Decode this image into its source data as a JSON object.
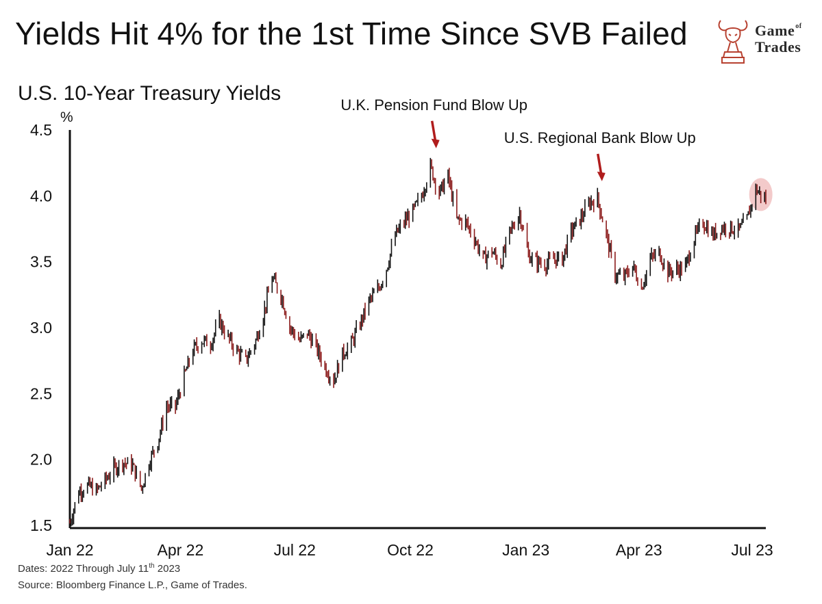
{
  "header": {
    "title": "Yields Hit 4% for the 1st Time Since SVB Failed",
    "logo_line1": "Game",
    "logo_of": "of",
    "logo_line2": "Trades"
  },
  "footer": {
    "dates_prefix": "Dates: 2022 Through July 11",
    "dates_sup": "th",
    "dates_suffix": " 2023",
    "source": "Source: Bloomberg Finance L.P., Game of Trades."
  },
  "colors": {
    "up": "#111111",
    "down": "#8b1a1a",
    "accent": "#b01c1c",
    "highlight": "#f2c4c4"
  },
  "chart_data": {
    "type": "line",
    "title": "U.S. 10-Year Treasury Yields",
    "ylabel": "%",
    "ylim": [
      1.5,
      4.5
    ],
    "yticks": [
      "1.5",
      "2.0",
      "2.5",
      "3.0",
      "3.5",
      "4.0",
      "4.5"
    ],
    "xticks": [
      {
        "label": "Jan 22",
        "date": "2022-01-03"
      },
      {
        "label": "Apr 22",
        "date": "2022-04-01"
      },
      {
        "label": "Jul 22",
        "date": "2022-07-01"
      },
      {
        "label": "Oct 22",
        "date": "2022-10-01"
      },
      {
        "label": "Jan 23",
        "date": "2023-01-01"
      },
      {
        "label": "Apr 23",
        "date": "2023-04-01"
      },
      {
        "label": "Jul 23",
        "date": "2023-07-01"
      }
    ],
    "xlim": [
      "2022-01-03",
      "2023-07-11"
    ],
    "series": [
      {
        "points": [
          [
            "2022-01-03",
            1.52
          ],
          [
            "2022-01-10",
            1.76
          ],
          [
            "2022-01-18",
            1.8
          ],
          [
            "2022-01-24",
            1.76
          ],
          [
            "2022-01-31",
            1.84
          ],
          [
            "2022-02-07",
            1.93
          ],
          [
            "2022-02-14",
            1.98
          ],
          [
            "2022-02-22",
            1.95
          ],
          [
            "2022-03-01",
            1.78
          ],
          [
            "2022-03-07",
            1.98
          ],
          [
            "2022-03-14",
            2.14
          ],
          [
            "2022-03-21",
            2.4
          ],
          [
            "2022-03-28",
            2.4
          ],
          [
            "2022-04-04",
            2.63
          ],
          [
            "2022-04-11",
            2.83
          ],
          [
            "2022-04-18",
            2.9
          ],
          [
            "2022-04-25",
            2.88
          ],
          [
            "2022-05-02",
            3.05
          ],
          [
            "2022-05-09",
            2.92
          ],
          [
            "2022-05-16",
            2.82
          ],
          [
            "2022-05-23",
            2.75
          ],
          [
            "2022-05-31",
            2.9
          ],
          [
            "2022-06-06",
            3.1
          ],
          [
            "2022-06-13",
            3.38
          ],
          [
            "2022-06-21",
            3.22
          ],
          [
            "2022-06-27",
            3.0
          ],
          [
            "2022-07-05",
            2.9
          ],
          [
            "2022-07-11",
            2.96
          ],
          [
            "2022-07-18",
            2.85
          ],
          [
            "2022-07-25",
            2.7
          ],
          [
            "2022-08-01",
            2.6
          ],
          [
            "2022-08-08",
            2.8
          ],
          [
            "2022-08-15",
            2.88
          ],
          [
            "2022-08-22",
            3.03
          ],
          [
            "2022-08-29",
            3.2
          ],
          [
            "2022-09-06",
            3.3
          ],
          [
            "2022-09-12",
            3.45
          ],
          [
            "2022-09-19",
            3.7
          ],
          [
            "2022-09-26",
            3.8
          ],
          [
            "2022-10-03",
            3.88
          ],
          [
            "2022-10-10",
            4.0
          ],
          [
            "2022-10-17",
            4.22
          ],
          [
            "2022-10-24",
            4.02
          ],
          [
            "2022-10-31",
            4.15
          ],
          [
            "2022-11-07",
            3.82
          ],
          [
            "2022-11-14",
            3.8
          ],
          [
            "2022-11-21",
            3.68
          ],
          [
            "2022-11-28",
            3.52
          ],
          [
            "2022-12-05",
            3.58
          ],
          [
            "2022-12-12",
            3.48
          ],
          [
            "2022-12-19",
            3.72
          ],
          [
            "2022-12-27",
            3.87
          ],
          [
            "2023-01-03",
            3.55
          ],
          [
            "2023-01-09",
            3.5
          ],
          [
            "2023-01-17",
            3.48
          ],
          [
            "2023-01-23",
            3.52
          ],
          [
            "2023-01-30",
            3.52
          ],
          [
            "2023-02-06",
            3.73
          ],
          [
            "2023-02-13",
            3.82
          ],
          [
            "2023-02-21",
            3.95
          ],
          [
            "2023-02-27",
            3.98
          ],
          [
            "2023-03-06",
            3.7
          ],
          [
            "2023-03-13",
            3.4
          ],
          [
            "2023-03-20",
            3.38
          ],
          [
            "2023-03-27",
            3.47
          ],
          [
            "2023-04-03",
            3.3
          ],
          [
            "2023-04-10",
            3.52
          ],
          [
            "2023-04-17",
            3.57
          ],
          [
            "2023-04-24",
            3.42
          ],
          [
            "2023-05-01",
            3.44
          ],
          [
            "2023-05-08",
            3.46
          ],
          [
            "2023-05-15",
            3.68
          ],
          [
            "2023-05-22",
            3.8
          ],
          [
            "2023-05-30",
            3.7
          ],
          [
            "2023-06-05",
            3.76
          ],
          [
            "2023-06-12",
            3.76
          ],
          [
            "2023-06-20",
            3.74
          ],
          [
            "2023-06-26",
            3.82
          ],
          [
            "2023-07-03",
            4.05
          ],
          [
            "2023-07-11",
            3.97
          ]
        ]
      }
    ],
    "annotations": [
      {
        "text": "U.K. Pension Fund Blow Up",
        "date": "2022-10-21",
        "value": 4.33
      },
      {
        "text": "U.S. Regional Bank Blow Up",
        "date": "2023-03-02",
        "value": 4.08
      }
    ],
    "highlight": {
      "date": "2023-07-07",
      "value": 4.01
    }
  }
}
